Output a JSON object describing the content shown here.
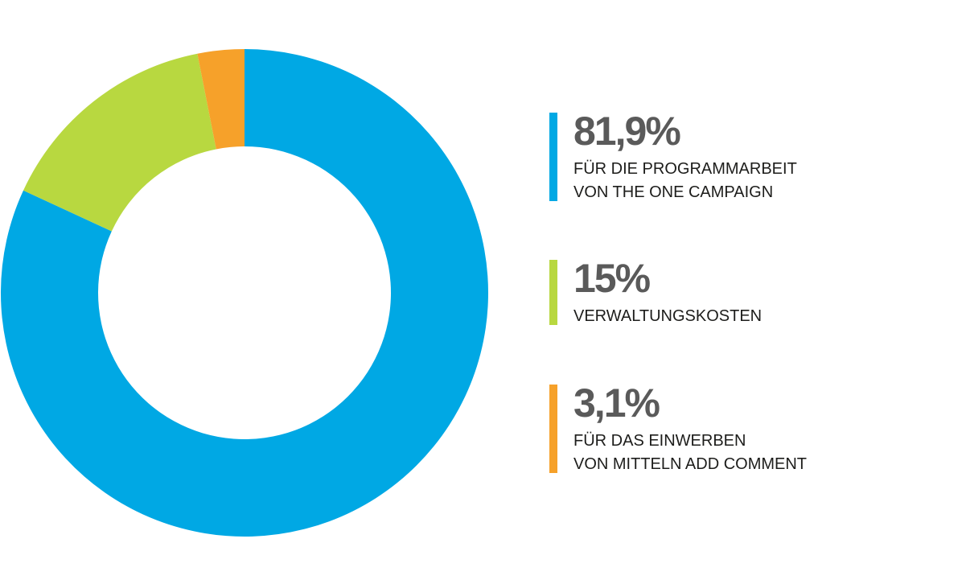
{
  "chart_data": {
    "type": "pie",
    "variant": "donut",
    "start_angle_deg": 0,
    "direction": "clockwise",
    "slices": [
      {
        "value_pct": 81.9,
        "value_label": "81,9%",
        "label": "FÜR DIE PROGRAMMARBEIT\nVON THE ONE CAMPAIGN",
        "color": "#00a8e4"
      },
      {
        "value_pct": 15,
        "value_label": "15%",
        "label": "VERWALTUNGSKOSTEN",
        "color": "#b8d840"
      },
      {
        "value_pct": 3.1,
        "value_label": "3,1%",
        "label": "FÜR DAS EINWERBEN\nVON MITTELN ADD COMMENT",
        "color": "#f6a12a"
      }
    ],
    "legend_position": "right"
  }
}
